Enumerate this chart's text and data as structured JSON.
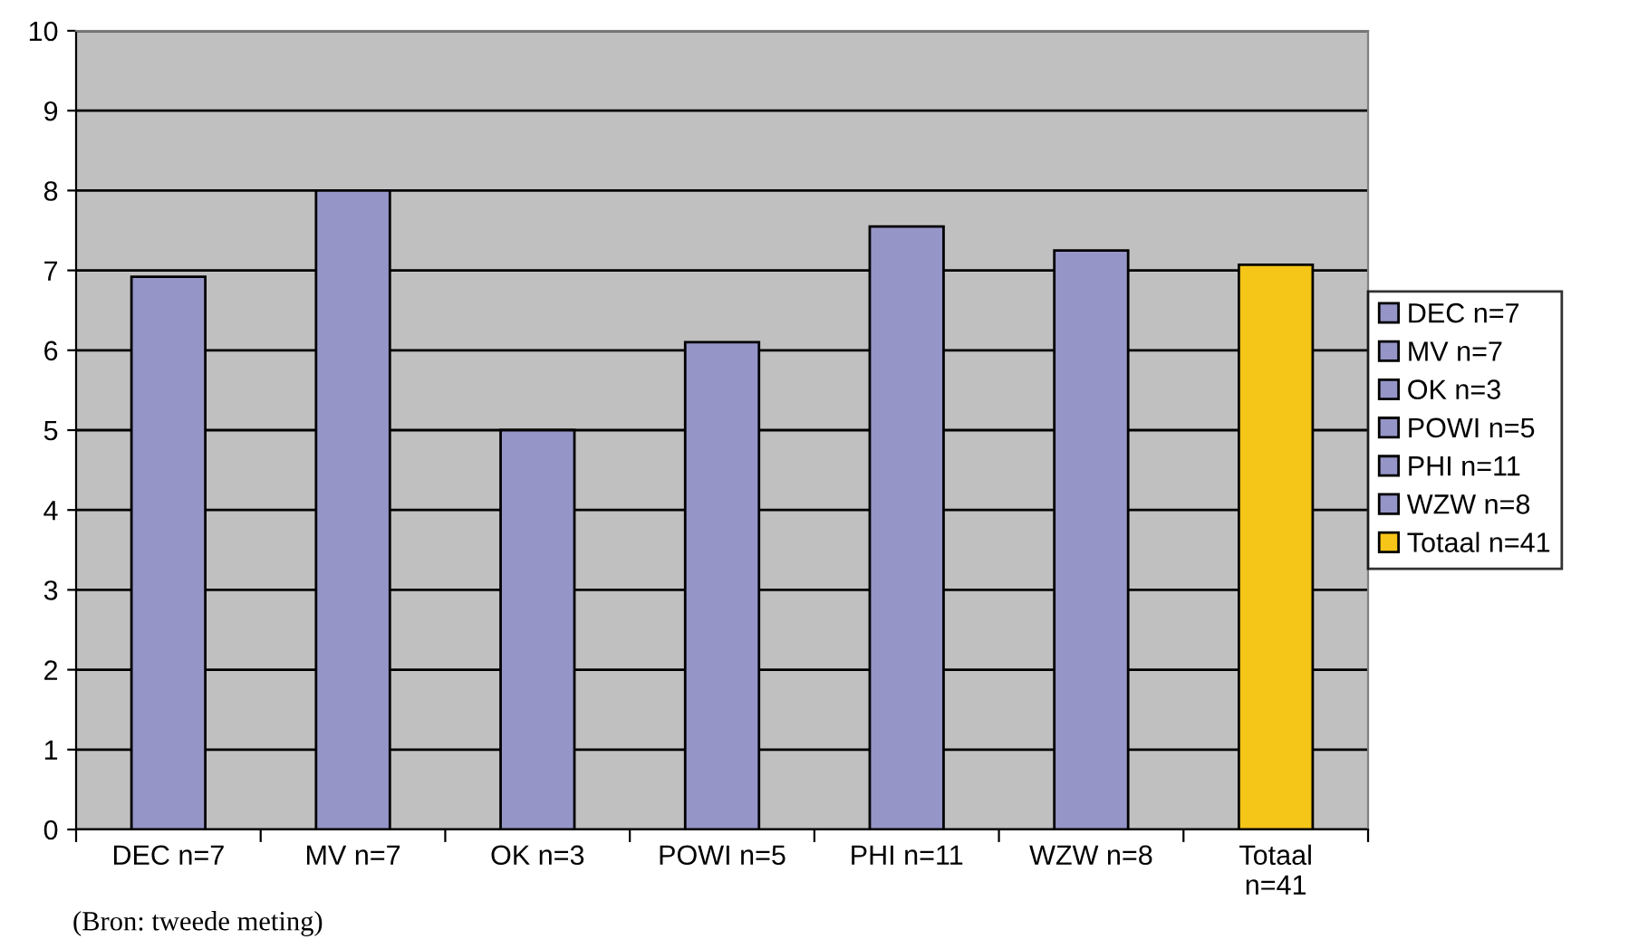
{
  "chart_data": {
    "type": "bar",
    "categories": [
      "DEC n=7",
      "MV n=7",
      "OK n=3",
      "POWI n=5",
      "PHI n=11",
      "WZW n=8",
      "Totaal n=41"
    ],
    "series": [
      {
        "name": "DEC n=7",
        "color": "#9595c8",
        "values": [
          6.92,
          null,
          null,
          null,
          null,
          null,
          null
        ]
      },
      {
        "name": "MV n=7",
        "color": "#9595c8",
        "values": [
          null,
          8.0,
          null,
          null,
          null,
          null,
          null
        ]
      },
      {
        "name": "OK n=3",
        "color": "#9595c8",
        "values": [
          null,
          null,
          5.0,
          null,
          null,
          null,
          null
        ]
      },
      {
        "name": "POWI n=5",
        "color": "#9595c8",
        "values": [
          null,
          null,
          null,
          6.1,
          null,
          null,
          null
        ]
      },
      {
        "name": "PHI n=11",
        "color": "#9595c8",
        "values": [
          null,
          null,
          null,
          null,
          7.55,
          null,
          null
        ]
      },
      {
        "name": "WZW n=8",
        "color": "#9595c8",
        "values": [
          null,
          null,
          null,
          null,
          null,
          7.25,
          null
        ]
      },
      {
        "name": "Totaal n=41",
        "color": "#f5c518",
        "values": [
          null,
          null,
          null,
          null,
          null,
          null,
          7.07
        ]
      }
    ],
    "ylim": [
      0,
      10
    ],
    "yticks": [
      0,
      1,
      2,
      3,
      4,
      5,
      6,
      7,
      8,
      9,
      10
    ],
    "grid": "y",
    "legend": "right",
    "annotations": [
      "(Bron: tweede meting)"
    ]
  }
}
